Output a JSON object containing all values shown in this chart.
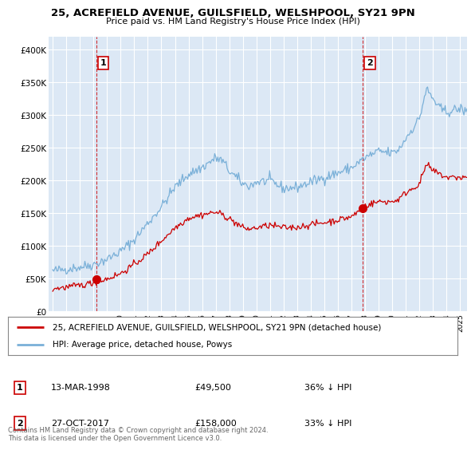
{
  "title_line1": "25, ACREFIELD AVENUE, GUILSFIELD, WELSHPOOL, SY21 9PN",
  "title_line2": "Price paid vs. HM Land Registry's House Price Index (HPI)",
  "background_color": "#ffffff",
  "plot_bg_color": "#dce8f5",
  "grid_color": "#ffffff",
  "hpi_color": "#7ab0d8",
  "price_color": "#cc0000",
  "annotation_color": "#cc0000",
  "ytick_labels": [
    "£0",
    "£50K",
    "£100K",
    "£150K",
    "£200K",
    "£250K",
    "£300K",
    "£350K",
    "£400K"
  ],
  "ytick_values": [
    0,
    50000,
    100000,
    150000,
    200000,
    250000,
    300000,
    350000,
    400000
  ],
  "ylim": [
    0,
    420000
  ],
  "xlim_start": 1994.7,
  "xlim_end": 2025.5,
  "purchase1_x": 1998.2,
  "purchase1_y": 49500,
  "purchase1_label": "1",
  "purchase1_date": "13-MAR-1998",
  "purchase1_price": "£49,500",
  "purchase1_hpi": "36% ↓ HPI",
  "purchase2_x": 2017.82,
  "purchase2_y": 158000,
  "purchase2_label": "2",
  "purchase2_date": "27-OCT-2017",
  "purchase2_price": "£158,000",
  "purchase2_hpi": "33% ↓ HPI",
  "legend_line1": "25, ACREFIELD AVENUE, GUILSFIELD, WELSHPOOL, SY21 9PN (detached house)",
  "legend_line2": "HPI: Average price, detached house, Powys",
  "footer": "Contains HM Land Registry data © Crown copyright and database right 2024.\nThis data is licensed under the Open Government Licence v3.0.",
  "xtick_years": [
    1995,
    1996,
    1997,
    1998,
    1999,
    2000,
    2001,
    2002,
    2003,
    2004,
    2005,
    2006,
    2007,
    2008,
    2009,
    2010,
    2011,
    2012,
    2013,
    2014,
    2015,
    2016,
    2017,
    2018,
    2019,
    2020,
    2021,
    2022,
    2023,
    2024,
    2025
  ]
}
